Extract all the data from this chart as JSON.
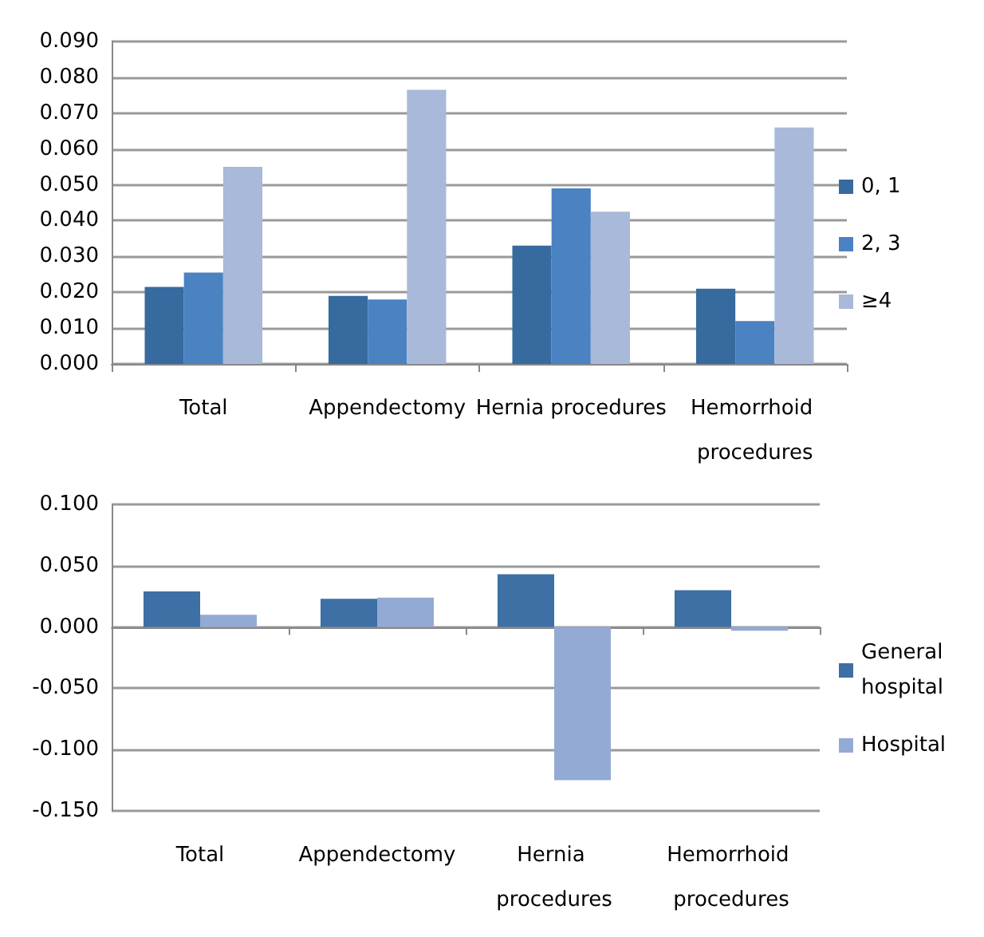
{
  "chart_data": [
    {
      "type": "bar",
      "categories": [
        "Total",
        "Appendectomy",
        "Hernia procedures",
        "Hemorrhoid procedures"
      ],
      "series": [
        {
          "name": "0, 1",
          "color": "#376a9f",
          "values": [
            0.0215,
            0.019,
            0.033,
            0.021
          ]
        },
        {
          "name": "2, 3",
          "color": "#4a82c2",
          "values": [
            0.0255,
            0.018,
            0.049,
            0.012
          ]
        },
        {
          "name": "≥4",
          "color": "#a8b9d9",
          "values": [
            0.055,
            0.0765,
            0.0425,
            0.066
          ]
        }
      ],
      "ylim": [
        0,
        0.09
      ],
      "yticks": [
        {
          "value": 0,
          "label": "0.000"
        },
        {
          "value": 0.01,
          "label": "0.010"
        },
        {
          "value": 0.02,
          "label": "0.020"
        },
        {
          "value": 0.03,
          "label": "0.030"
        },
        {
          "value": 0.04,
          "label": "0.040"
        },
        {
          "value": 0.05,
          "label": "0.050"
        },
        {
          "value": 0.06,
          "label": "0.060"
        },
        {
          "value": 0.07,
          "label": "0.070"
        },
        {
          "value": 0.08,
          "label": "0.080"
        },
        {
          "value": 0.09,
          "label": "0.090"
        }
      ],
      "grid": "y",
      "legend": "right"
    },
    {
      "type": "bar",
      "categories": [
        "Total",
        "Appendectomy",
        "Hernia procedures",
        "Hemorrhoid procedures"
      ],
      "series": [
        {
          "name": "General hospital",
          "color": "#3e6fa5",
          "values": [
            0.029,
            0.023,
            0.043,
            0.03
          ]
        },
        {
          "name": "Hospital",
          "color": "#93aad4",
          "values": [
            0.01,
            0.024,
            -0.125,
            -0.003
          ]
        }
      ],
      "ylim": [
        -0.15,
        0.1
      ],
      "yticks": [
        {
          "value": -0.15,
          "label": "-0.150"
        },
        {
          "value": -0.1,
          "label": "-0.100"
        },
        {
          "value": -0.05,
          "label": "-0.050"
        },
        {
          "value": 0,
          "label": "0.000"
        },
        {
          "value": 0.05,
          "label": "0.050"
        },
        {
          "value": 0.1,
          "label": "0.100"
        }
      ],
      "grid": "y",
      "legend": "right"
    }
  ]
}
